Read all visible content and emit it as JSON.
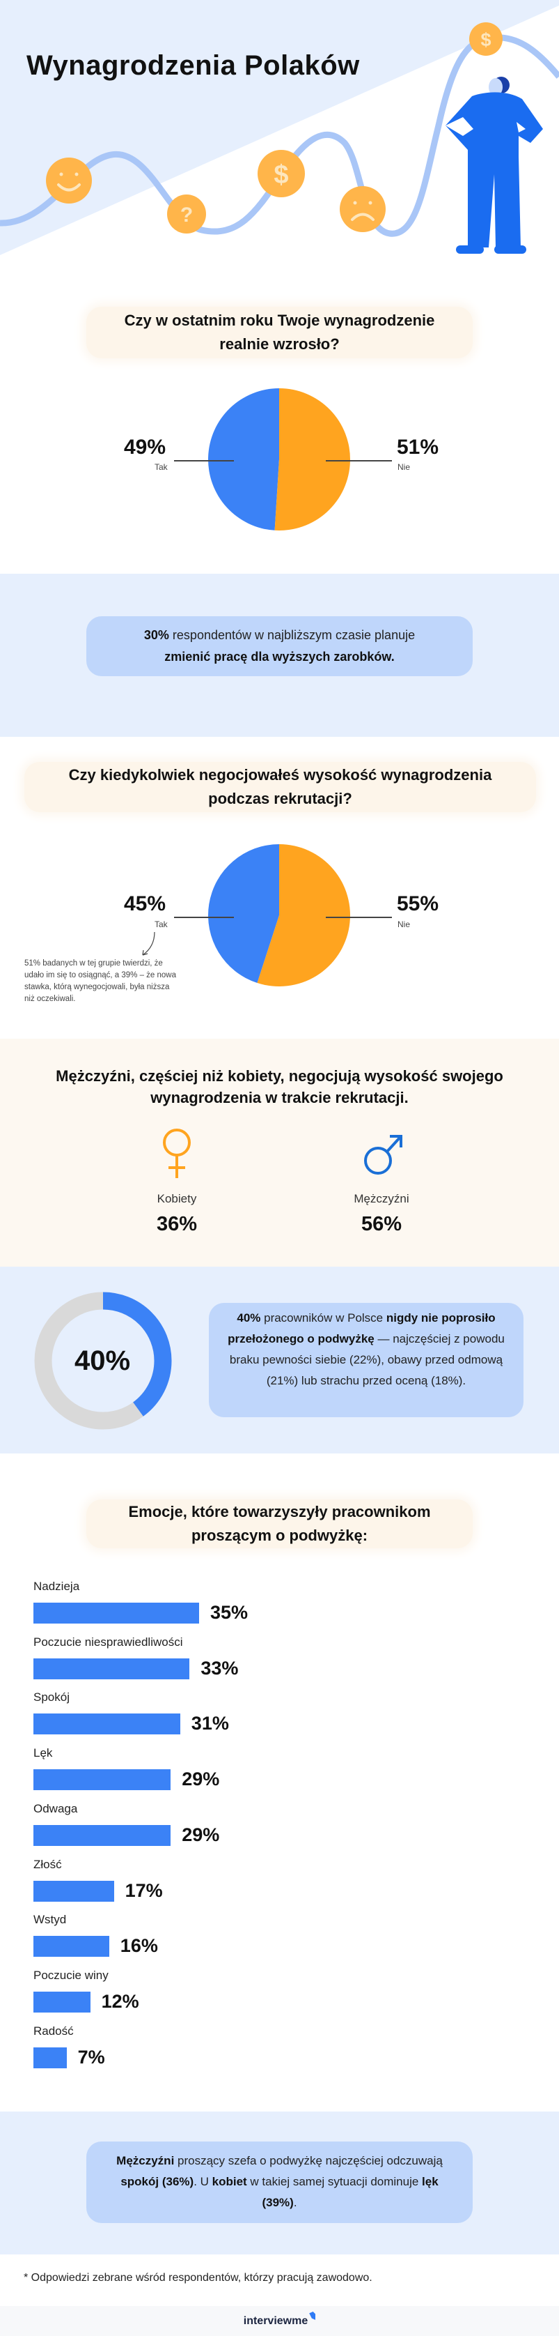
{
  "header": {
    "title": "Wynagrodzenia Polaków",
    "icons": [
      "smiley-coin-icon",
      "question-coin-icon",
      "dollar-coin-icon",
      "sad-coin-icon",
      "dollar-coin-icon",
      "person-illustration"
    ]
  },
  "colors": {
    "blue": "#3b82f6",
    "orange": "#ffa41f",
    "grey": "#d9d9d9",
    "light_bg": "#e6effd",
    "box_blue": "#bfd6fb",
    "cream": "#fdf8f1",
    "female": "#ffa41f",
    "male": "#1a6fd6"
  },
  "q1": {
    "title": "Czy w ostatnim roku Twoje wynagrodzenie realnie wzrosło?"
  },
  "info1": {
    "b1": "30%",
    "t1": " respondentów w najbliższym czasie planuje",
    "b2": "zmienić pracę dla wyższych zarobków."
  },
  "q2": {
    "title": "Czy kiedykolwiek negocjowałeś wysokość wynagrodzenia podczas rekrutacji?",
    "note": "51% badanych w tej grupie twierdzi, że udało im się to osiągnąć, a 39% – że nowa stawka, którą wynegocjowali, była niższa niż oczekiwali."
  },
  "gender": {
    "title": "Mężczyźni, częściej niż kobiety, negocjują wysokość swojego wynagrodzenia w trakcie rekrutacji.",
    "female_label": "Kobiety",
    "female_value": "36%",
    "male_label": "Mężczyźni",
    "male_value": "56%"
  },
  "never": {
    "value_label": "40%",
    "b1": "40%",
    "t1": " pracowników w Polsce ",
    "b2": "nigdy nie poprosiło przełożonego o podwyżkę",
    "t2": " — najczęściej z powodu braku pewności siebie (22%), obawy przed odmową (21%) lub strachu przed oceną (18%)."
  },
  "emotions": {
    "title": "Emocje, które towarzyszyły pracownikom proszącym o podwyżkę:"
  },
  "info2": {
    "b1": "Mężczyźni",
    "t1": " proszący szefa o podwyżkę najczęściej odczuwają ",
    "b2": "spokój (36%)",
    "t2": ". U ",
    "b3": "kobiet",
    "t3": " w takiej samej sytuacji dominuje ",
    "b4": "lęk (39%)",
    "t4": "."
  },
  "footnote": "* Odpowiedzi zebrane wśród respondentów, którzy pracują zawodowo.",
  "footer": {
    "logo": "interviewme"
  },
  "chart_data": [
    {
      "type": "pie",
      "title": "Czy w ostatnim roku Twoje wynagrodzenie realnie wzrosło?",
      "categories": [
        "Tak",
        "Nie"
      ],
      "values": [
        49,
        51
      ],
      "labels": [
        "49%",
        "51%"
      ],
      "colors": [
        "#3b82f6",
        "#ffa41f"
      ]
    },
    {
      "type": "pie",
      "title": "Czy kiedykolwiek negocjowałeś wysokość wynagrodzenia podczas rekrutacji?",
      "categories": [
        "Tak",
        "Nie"
      ],
      "values": [
        45,
        55
      ],
      "labels": [
        "45%",
        "55%"
      ],
      "colors": [
        "#3b82f6",
        "#ffa41f"
      ]
    },
    {
      "type": "pie",
      "variant": "donut",
      "values": [
        40,
        60
      ],
      "label": "40%",
      "colors": [
        "#3b82f6",
        "#d9d9d9"
      ]
    },
    {
      "type": "bar",
      "orientation": "horizontal",
      "title": "Emocje, które towarzyszyły pracownikom proszącym o podwyżkę:",
      "categories": [
        "Nadzieja",
        "Poczucie niesprawiedliwości",
        "Spokój",
        "Lęk",
        "Odwaga",
        "Złość",
        "Wstyd",
        "Poczucie winy",
        "Radość"
      ],
      "values": [
        35,
        33,
        31,
        29,
        29,
        17,
        16,
        12,
        7
      ],
      "labels": [
        "35%",
        "33%",
        "31%",
        "29%",
        "29%",
        "17%",
        "16%",
        "12%",
        "7%"
      ],
      "color": "#3b82f6",
      "grid": false
    }
  ]
}
